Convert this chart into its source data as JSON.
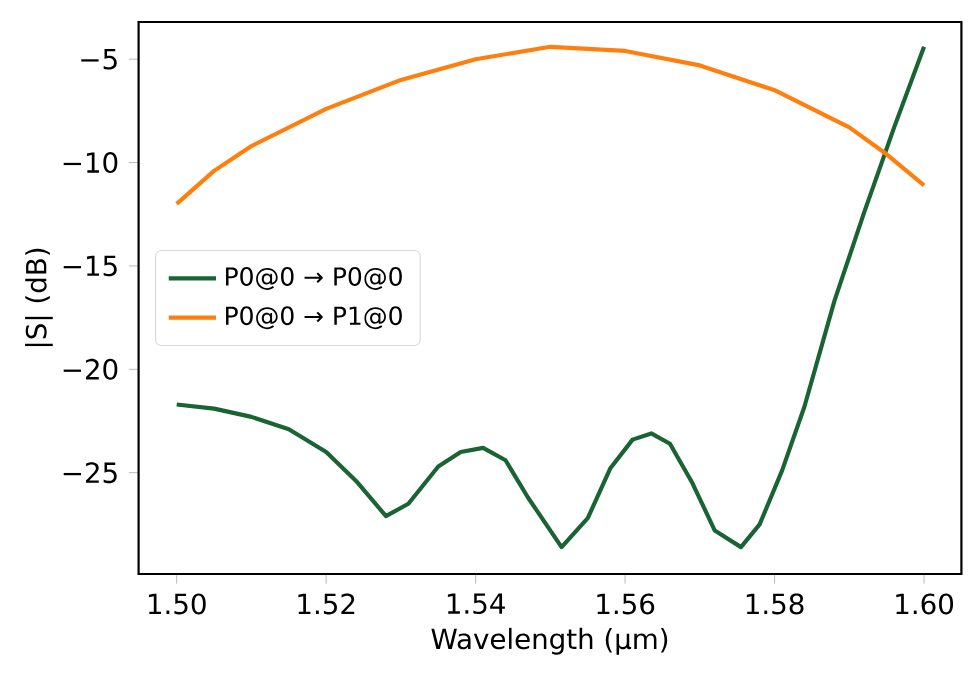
{
  "chart_data": {
    "type": "line",
    "xlabel": "Wavelength (µm)",
    "ylabel": "|S| (dB)",
    "xlim": [
      1.4949,
      1.605
    ],
    "ylim": [
      -29.9,
      -3.2
    ],
    "xticks": [
      {
        "value": 1.5,
        "label": "1.50"
      },
      {
        "value": 1.52,
        "label": "1.52"
      },
      {
        "value": 1.54,
        "label": "1.54"
      },
      {
        "value": 1.56,
        "label": "1.56"
      },
      {
        "value": 1.58,
        "label": "1.58"
      },
      {
        "value": 1.6,
        "label": "1.60"
      }
    ],
    "yticks": [
      {
        "value": -5,
        "label": "−5"
      },
      {
        "value": -10,
        "label": "−10"
      },
      {
        "value": -15,
        "label": "−15"
      },
      {
        "value": -20,
        "label": "−20"
      },
      {
        "value": -25,
        "label": "−25"
      }
    ],
    "legend": "left",
    "grid": false,
    "series": [
      {
        "name": "P0@0 → P0@0",
        "color": "#1a6333",
        "x": [
          1.5,
          1.505,
          1.51,
          1.515,
          1.52,
          1.524,
          1.528,
          1.531,
          1.535,
          1.538,
          1.541,
          1.544,
          1.547,
          1.5515,
          1.555,
          1.558,
          1.561,
          1.5635,
          1.566,
          1.569,
          1.572,
          1.5755,
          1.578,
          1.581,
          1.584,
          1.588,
          1.592,
          1.596,
          1.6
        ],
        "values": [
          -21.7,
          -21.9,
          -22.3,
          -22.9,
          -24.0,
          -25.4,
          -27.1,
          -26.5,
          -24.7,
          -24.0,
          -23.8,
          -24.4,
          -26.2,
          -28.6,
          -27.2,
          -24.8,
          -23.4,
          -23.1,
          -23.6,
          -25.5,
          -27.8,
          -28.6,
          -27.5,
          -24.9,
          -21.8,
          -16.7,
          -12.4,
          -8.3,
          -4.4
        ]
      },
      {
        "name": "P0@0 → P1@0",
        "color": "#ff7f0e",
        "x": [
          1.5,
          1.505,
          1.51,
          1.52,
          1.53,
          1.54,
          1.55,
          1.56,
          1.57,
          1.58,
          1.59,
          1.595,
          1.6
        ],
        "values": [
          -12.0,
          -10.4,
          -9.2,
          -7.4,
          -6.0,
          -5.0,
          -4.4,
          -4.6,
          -5.3,
          -6.5,
          -8.3,
          -9.6,
          -11.1
        ]
      }
    ]
  }
}
